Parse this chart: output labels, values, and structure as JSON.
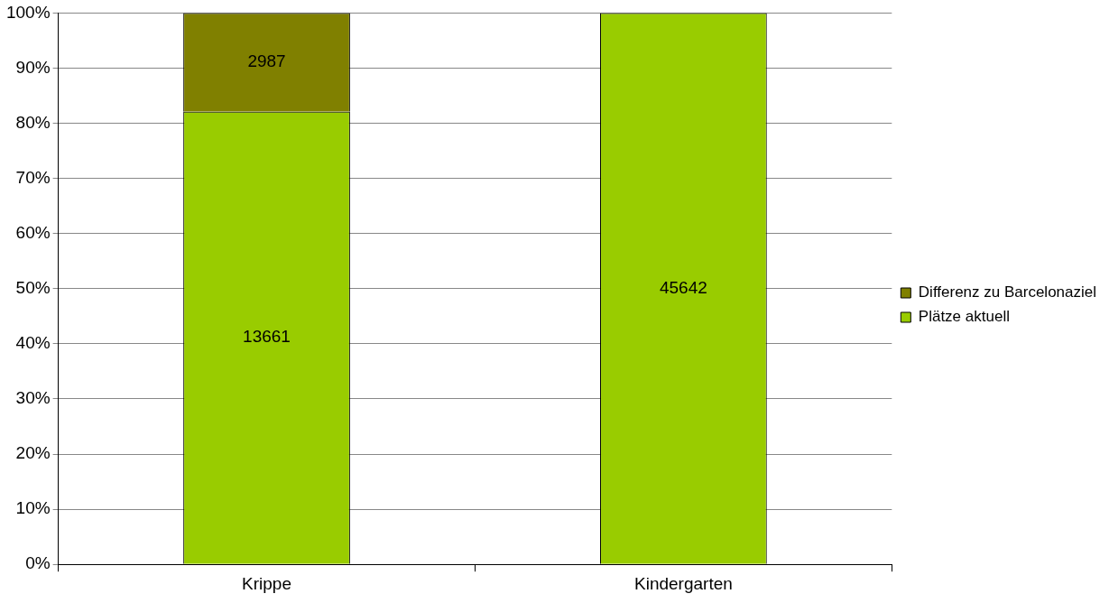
{
  "chart_data": {
    "type": "bar",
    "stacked": true,
    "categories": [
      "Krippe",
      "Kindergarten"
    ],
    "series": [
      {
        "name": "Plätze aktuell",
        "color": "#99cc00",
        "values": [
          82.1,
          100
        ]
      },
      {
        "name": "Differenz zu Barcelonaziel",
        "color": "#808000",
        "values": [
          17.9,
          null
        ]
      }
    ],
    "annotations": [
      "13661",
      "45642",
      "2987"
    ],
    "ylim": [
      0,
      100
    ],
    "yticks": [
      {
        "value": 0,
        "label": "0%"
      },
      {
        "value": 10,
        "label": "10%"
      },
      {
        "value": 20,
        "label": "20%"
      },
      {
        "value": 30,
        "label": "30%"
      },
      {
        "value": 40,
        "label": "40%"
      },
      {
        "value": 50,
        "label": "50%"
      },
      {
        "value": 60,
        "label": "60%"
      },
      {
        "value": 70,
        "label": "70%"
      },
      {
        "value": 80,
        "label": "80%"
      },
      {
        "value": 90,
        "label": "90%"
      },
      {
        "value": 100,
        "label": "100%"
      }
    ],
    "grid": "y",
    "legend": "right"
  }
}
